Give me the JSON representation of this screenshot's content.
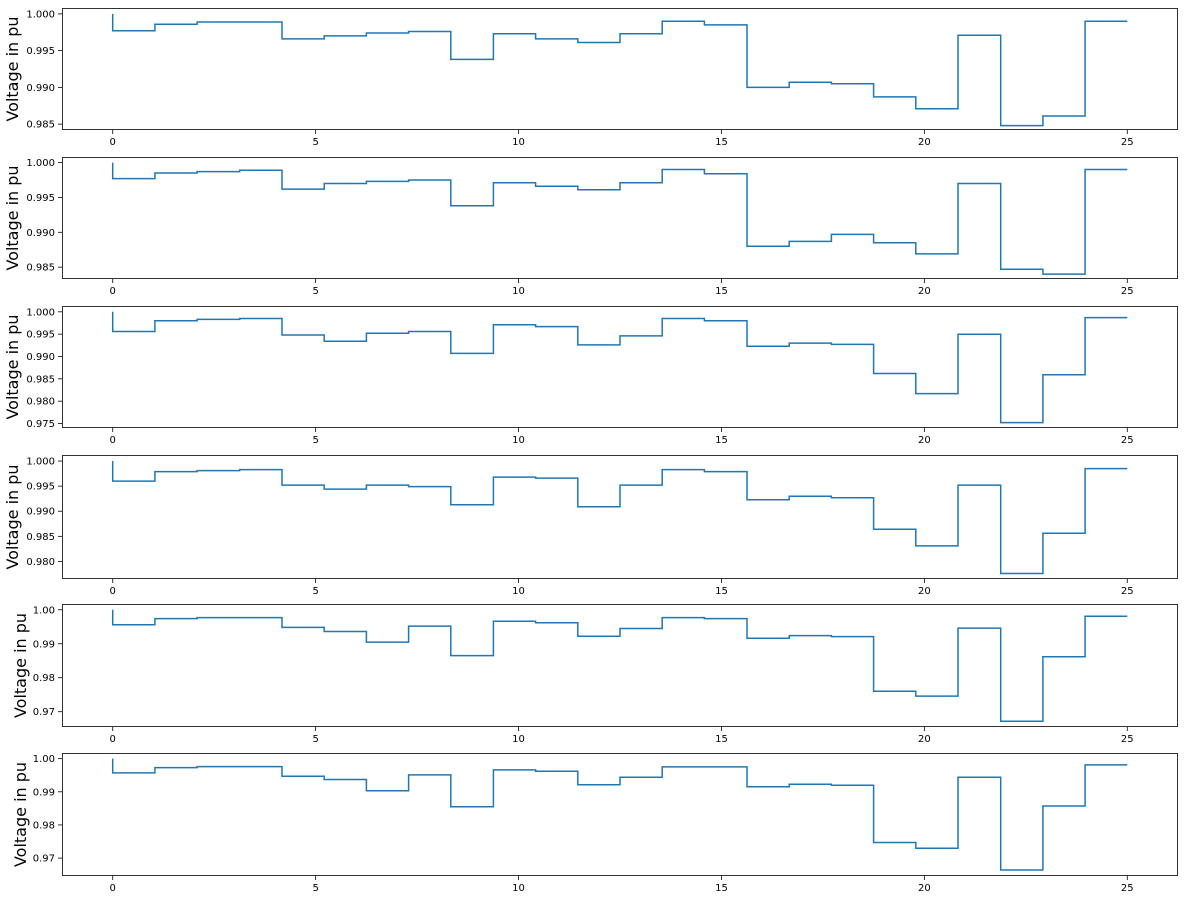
{
  "chart_data": [
    {
      "type": "line",
      "step": "post",
      "ylabel": "Voltage in pu",
      "xlim": [
        -1.25,
        26.25
      ],
      "ylim": [
        0.9842,
        1.0008
      ],
      "xticks": [
        0,
        5,
        10,
        15,
        20,
        25
      ],
      "yticks": [
        0.985,
        0.99,
        0.995,
        1.0
      ],
      "ytick_labels": [
        "0.985",
        "0.990",
        "0.995",
        "1.000"
      ],
      "line_color": "#1f77b4",
      "x": [
        0,
        0,
        1.04,
        2.08,
        3.13,
        4.17,
        5.21,
        6.25,
        7.29,
        8.33,
        9.38,
        10.42,
        11.46,
        12.5,
        13.54,
        14.58,
        15.63,
        16.67,
        17.71,
        18.75,
        19.79,
        20.83,
        21.88,
        22.92,
        23.96,
        25
      ],
      "y": [
        1.0,
        0.9977,
        0.9986,
        0.9989,
        0.9989,
        0.9966,
        0.997,
        0.9974,
        0.9976,
        0.9938,
        0.9973,
        0.9966,
        0.9961,
        0.9973,
        0.999,
        0.9985,
        0.99,
        0.9907,
        0.9905,
        0.9887,
        0.9871,
        0.9971,
        0.9848,
        0.9861,
        0.999,
        0.999
      ]
    },
    {
      "type": "line",
      "step": "post",
      "ylabel": "Voltage in pu",
      "xlim": [
        -1.25,
        26.25
      ],
      "ylim": [
        0.9833,
        1.0008
      ],
      "xticks": [
        0,
        5,
        10,
        15,
        20,
        25
      ],
      "yticks": [
        0.985,
        0.99,
        0.995,
        1.0
      ],
      "ytick_labels": [
        "0.985",
        "0.990",
        "0.995",
        "1.000"
      ],
      "line_color": "#1f77b4",
      "x": [
        0,
        0,
        1.04,
        2.08,
        3.13,
        4.17,
        5.21,
        6.25,
        7.29,
        8.33,
        9.38,
        10.42,
        11.46,
        12.5,
        13.54,
        14.58,
        15.63,
        16.67,
        17.71,
        18.75,
        19.79,
        20.83,
        21.88,
        22.92,
        23.96,
        25
      ],
      "y": [
        1.0,
        0.9977,
        0.9985,
        0.9987,
        0.9989,
        0.9962,
        0.997,
        0.9973,
        0.9975,
        0.9938,
        0.9971,
        0.9966,
        0.9961,
        0.9971,
        0.999,
        0.9984,
        0.988,
        0.9887,
        0.9897,
        0.9885,
        0.9869,
        0.997,
        0.9847,
        0.984,
        0.999,
        0.999
      ]
    },
    {
      "type": "line",
      "step": "post",
      "ylabel": "Voltage in pu",
      "xlim": [
        -1.25,
        26.25
      ],
      "ylim": [
        0.974,
        1.0013
      ],
      "xticks": [
        0,
        5,
        10,
        15,
        20,
        25
      ],
      "yticks": [
        0.975,
        0.98,
        0.985,
        0.99,
        0.995,
        1.0
      ],
      "ytick_labels": [
        "0.975",
        "0.980",
        "0.985",
        "0.990",
        "0.995",
        "1.000"
      ],
      "line_color": "#1f77b4",
      "x": [
        0,
        0,
        1.04,
        2.08,
        3.13,
        4.17,
        5.21,
        6.25,
        7.29,
        8.33,
        9.38,
        10.42,
        11.46,
        12.5,
        13.54,
        14.58,
        15.63,
        16.67,
        17.71,
        18.75,
        19.79,
        20.83,
        21.88,
        22.92,
        23.96,
        25
      ],
      "y": [
        1.0,
        0.9956,
        0.998,
        0.9983,
        0.9985,
        0.9948,
        0.9934,
        0.9952,
        0.9956,
        0.9907,
        0.9971,
        0.9967,
        0.9926,
        0.9946,
        0.9985,
        0.998,
        0.9923,
        0.993,
        0.9927,
        0.9862,
        0.9817,
        0.995,
        0.9752,
        0.9859,
        0.9987,
        0.9987
      ]
    },
    {
      "type": "line",
      "step": "post",
      "ylabel": "Voltage in pu",
      "xlim": [
        -1.25,
        26.25
      ],
      "ylim": [
        0.9765,
        1.0012
      ],
      "xticks": [
        0,
        5,
        10,
        15,
        20,
        25
      ],
      "yticks": [
        0.98,
        0.985,
        0.99,
        0.995,
        1.0
      ],
      "ytick_labels": [
        "0.980",
        "0.985",
        "0.990",
        "0.995",
        "1.000"
      ],
      "line_color": "#1f77b4",
      "x": [
        0,
        0,
        1.04,
        2.08,
        3.13,
        4.17,
        5.21,
        6.25,
        7.29,
        8.33,
        9.38,
        10.42,
        11.46,
        12.5,
        13.54,
        14.58,
        15.63,
        16.67,
        17.71,
        18.75,
        19.79,
        20.83,
        21.88,
        22.92,
        23.96,
        25
      ],
      "y": [
        1.0,
        0.996,
        0.9979,
        0.9981,
        0.9983,
        0.9952,
        0.9944,
        0.9952,
        0.9949,
        0.9913,
        0.9968,
        0.9966,
        0.9909,
        0.9952,
        0.9983,
        0.9979,
        0.9923,
        0.993,
        0.9927,
        0.9864,
        0.9831,
        0.9952,
        0.9776,
        0.9856,
        0.9985,
        0.9985
      ]
    },
    {
      "type": "line",
      "step": "post",
      "ylabel": "Voltage in pu",
      "xlim": [
        -1.25,
        26.25
      ],
      "ylim": [
        0.9655,
        1.0017
      ],
      "xticks": [
        0,
        5,
        10,
        15,
        20,
        25
      ],
      "yticks": [
        0.97,
        0.98,
        0.99,
        1.0
      ],
      "ytick_labels": [
        "0.97",
        "0.98",
        "0.99",
        "1.00"
      ],
      "line_color": "#1f77b4",
      "x": [
        0,
        0,
        1.04,
        2.08,
        3.13,
        4.17,
        5.21,
        6.25,
        7.29,
        8.33,
        9.38,
        10.42,
        11.46,
        12.5,
        13.54,
        14.58,
        15.63,
        16.67,
        17.71,
        18.75,
        19.79,
        20.83,
        21.88,
        22.92,
        23.96,
        25
      ],
      "y": [
        1.0,
        0.9956,
        0.9974,
        0.9977,
        0.9977,
        0.9948,
        0.9936,
        0.9905,
        0.9952,
        0.9865,
        0.9966,
        0.9962,
        0.9922,
        0.9945,
        0.9977,
        0.9974,
        0.9916,
        0.9924,
        0.9921,
        0.976,
        0.9746,
        0.9946,
        0.9672,
        0.9862,
        0.9981,
        0.9981
      ]
    },
    {
      "type": "line",
      "step": "post",
      "ylabel": "Voltage in pu",
      "xlim": [
        -1.25,
        26.25
      ],
      "ylim": [
        0.9646,
        1.0017
      ],
      "xticks": [
        0,
        5,
        10,
        15,
        20,
        25
      ],
      "yticks": [
        0.97,
        0.98,
        0.99,
        1.0
      ],
      "ytick_labels": [
        "0.97",
        "0.98",
        "0.99",
        "1.00"
      ],
      "line_color": "#1f77b4",
      "x": [
        0,
        0,
        1.04,
        2.08,
        3.13,
        4.17,
        5.21,
        6.25,
        7.29,
        8.33,
        9.38,
        10.42,
        11.46,
        12.5,
        13.54,
        14.58,
        15.63,
        16.67,
        17.71,
        18.75,
        19.79,
        20.83,
        21.88,
        22.92,
        23.96,
        25
      ],
      "y": [
        1.0,
        0.9957,
        0.9973,
        0.9976,
        0.9976,
        0.9947,
        0.9937,
        0.9903,
        0.9951,
        0.9855,
        0.9966,
        0.9962,
        0.9921,
        0.9944,
        0.9975,
        0.9975,
        0.9915,
        0.9923,
        0.992,
        0.9747,
        0.973,
        0.9944,
        0.9664,
        0.9857,
        0.9981,
        0.9981
      ]
    }
  ]
}
